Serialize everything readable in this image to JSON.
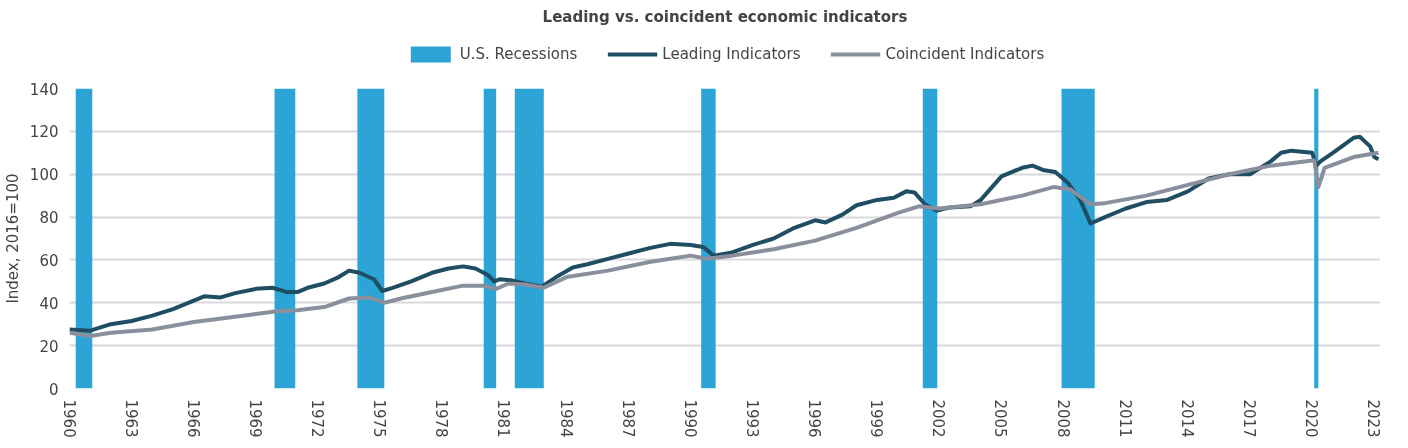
{
  "chart_data": {
    "type": "line",
    "title": "Leading vs. coincident economic indicators",
    "ylabel": "Index, 2016=100",
    "xlim": [
      1960,
      2023.3
    ],
    "xticks": [
      1960,
      1963,
      1966,
      1969,
      1972,
      1975,
      1978,
      1981,
      1984,
      1987,
      1990,
      1993,
      1996,
      1999,
      2002,
      2005,
      2008,
      2011,
      2014,
      2017,
      2020,
      2023
    ],
    "ylim": [
      0,
      140
    ],
    "yticks": [
      0,
      20,
      40,
      60,
      80,
      100,
      120,
      140
    ],
    "grid": "y",
    "legend": "top",
    "line_style": "solid",
    "marker": "none",
    "bands": [
      {
        "axis": "x",
        "from": 1960.3,
        "to": 1961.1,
        "label": "U.S. Recessions",
        "color": "#2ca5d6"
      },
      {
        "axis": "x",
        "from": 1969.9,
        "to": 1970.9,
        "color": "#2ca5d6"
      },
      {
        "axis": "x",
        "from": 1973.9,
        "to": 1975.2,
        "color": "#2ca5d6"
      },
      {
        "axis": "x",
        "from": 1980.0,
        "to": 1980.6,
        "color": "#2ca5d6"
      },
      {
        "axis": "x",
        "from": 1981.5,
        "to": 1982.9,
        "color": "#2ca5d6"
      },
      {
        "axis": "x",
        "from": 1990.5,
        "to": 1991.2,
        "color": "#2ca5d6"
      },
      {
        "axis": "x",
        "from": 2001.2,
        "to": 2001.9,
        "color": "#2ca5d6"
      },
      {
        "axis": "x",
        "from": 2007.9,
        "to": 2009.5,
        "color": "#2ca5d6"
      },
      {
        "axis": "x",
        "from": 2020.1,
        "to": 2020.3,
        "color": "#2ca5d6"
      }
    ],
    "series": [
      {
        "name": "Leading Indicators",
        "color": "#1f4e63",
        "x": [
          1960,
          1961,
          1962,
          1963,
          1964,
          1965,
          1966,
          1966.5,
          1967.3,
          1968,
          1969,
          1969.8,
          1970.5,
          1971,
          1971.5,
          1972.3,
          1973,
          1973.5,
          1974,
          1974.7,
          1975.1,
          1975.6,
          1976.5,
          1977.5,
          1978.3,
          1979,
          1979.6,
          1980.2,
          1980.5,
          1980.8,
          1981.3,
          1982,
          1982.8,
          1983.5,
          1984.3,
          1985,
          1986,
          1987,
          1988,
          1989,
          1990,
          1990.6,
          1991.1,
          1992,
          1993,
          1994,
          1995,
          1996,
          1996.5,
          1997.3,
          1998,
          1999,
          1999.8,
          2000.4,
          2000.8,
          2001.3,
          2001.9,
          2002.5,
          2003.5,
          2004,
          2005,
          2006,
          2006.5,
          2007,
          2007.6,
          2008.2,
          2008.8,
          2009.3,
          2010,
          2011,
          2012,
          2013,
          2014,
          2015,
          2016,
          2017,
          2018,
          2018.5,
          2019,
          2020,
          2020.2,
          2020.4,
          2021,
          2022,
          2022.3,
          2022.8,
          2023,
          2023.2
        ],
        "values": [
          27.5,
          27,
          30,
          31.5,
          34,
          37,
          41,
          43,
          42.5,
          44.5,
          46.5,
          47,
          45,
          45,
          47,
          49,
          52,
          55,
          54,
          51,
          45.5,
          47,
          50,
          54,
          56,
          57,
          56,
          53,
          50,
          51,
          50.5,
          49,
          47.5,
          52,
          56.5,
          58,
          60.5,
          63,
          65.5,
          67.5,
          67,
          66,
          62,
          63.5,
          67,
          70,
          75,
          78.5,
          77.5,
          81,
          85.5,
          88,
          89,
          92,
          91.5,
          86,
          83,
          84.5,
          85,
          88,
          99,
          103,
          104,
          102,
          101,
          96,
          88,
          77,
          80,
          84,
          87,
          88,
          92,
          98,
          100,
          100,
          106,
          110,
          111,
          110,
          104,
          106,
          110,
          117,
          117.5,
          113,
          108,
          107
        ]
      },
      {
        "name": "Coincident Indicators",
        "color": "#8a8f9e",
        "x": [
          1960,
          1961,
          1962,
          1964,
          1966,
          1968,
          1970,
          1971,
          1972.3,
          1973.5,
          1974.5,
          1975.2,
          1976,
          1977.5,
          1979,
          1980,
          1980.6,
          1981.2,
          1982,
          1982.9,
          1984,
          1986,
          1988,
          1990,
          1990.8,
          1992,
          1994,
          1996,
          1998,
          2000,
          2001,
          2002,
          2004,
          2006,
          2007.5,
          2008.3,
          2009.3,
          2010,
          2012,
          2014,
          2016,
          2018,
          2020.1,
          2020.3,
          2020.6,
          2022,
          2023.2
        ],
        "values": [
          26,
          24.5,
          26,
          27.5,
          31,
          33.5,
          36,
          36.5,
          38,
          42,
          42.5,
          40,
          42,
          45,
          48,
          48,
          46.5,
          49,
          48.5,
          47,
          52,
          55,
          59,
          62,
          60.5,
          62,
          65,
          69,
          75,
          82,
          85,
          84,
          86,
          90,
          94,
          93,
          86,
          86.5,
          90,
          95,
          100,
          104,
          106.5,
          94,
          103,
          108,
          110
        ]
      }
    ]
  }
}
